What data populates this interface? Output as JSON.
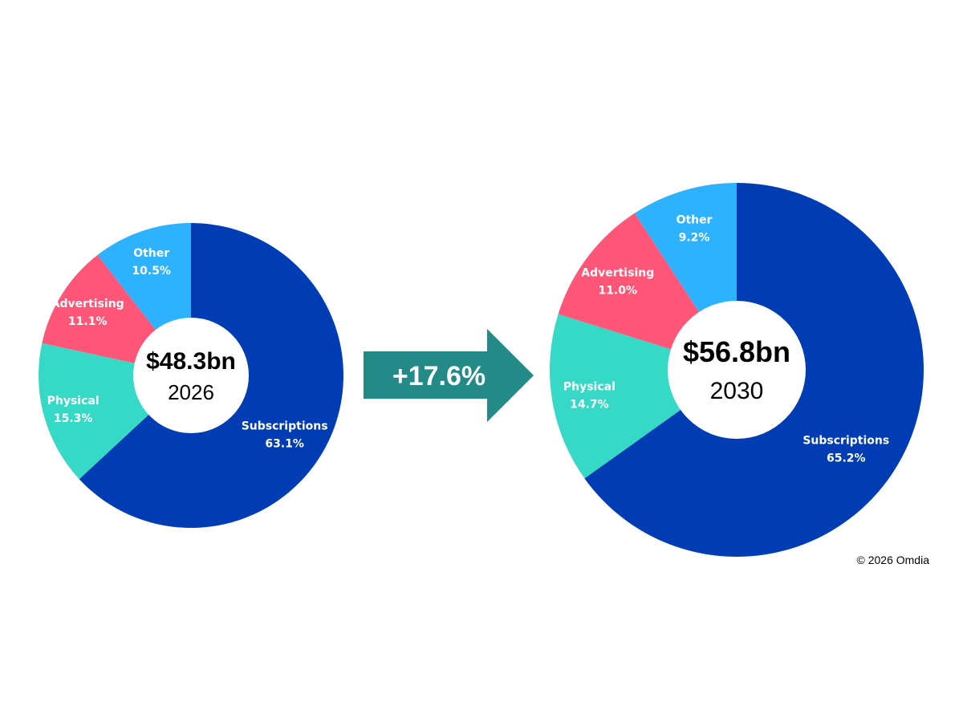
{
  "chart_data": [
    {
      "type": "pie",
      "variant": "donut",
      "center_total": "$48.3bn",
      "center_year": "2026",
      "slices": [
        {
          "name": "Subscriptions",
          "value": 63.1,
          "value_label": "63.1%",
          "color": "#003DB5"
        },
        {
          "name": "Physical",
          "value": 15.3,
          "value_label": "15.3%",
          "color": "#36D9C6"
        },
        {
          "name": "Advertising",
          "value": 11.1,
          "value_label": "11.1%",
          "color": "#FF5577"
        },
        {
          "name": "Other",
          "value": 10.5,
          "value_label": "10.5%",
          "color": "#2DB2FF"
        }
      ]
    },
    {
      "type": "pie",
      "variant": "donut",
      "center_total": "$56.8bn",
      "center_year": "2030",
      "slices": [
        {
          "name": "Subscriptions",
          "value": 65.2,
          "value_label": "65.2%",
          "color": "#003DB5"
        },
        {
          "name": "Physical",
          "value": 14.7,
          "value_label": "14.7%",
          "color": "#36D9C6"
        },
        {
          "name": "Advertising",
          "value": 11.0,
          "value_label": "11.0%",
          "color": "#FF5577"
        },
        {
          "name": "Other",
          "value": 9.2,
          "value_label": "9.2%",
          "color": "#2DB2FF"
        }
      ]
    }
  ],
  "growth": {
    "label": "+17.6%",
    "color": "#238A87"
  },
  "copyright": "© 2026 Omdia"
}
